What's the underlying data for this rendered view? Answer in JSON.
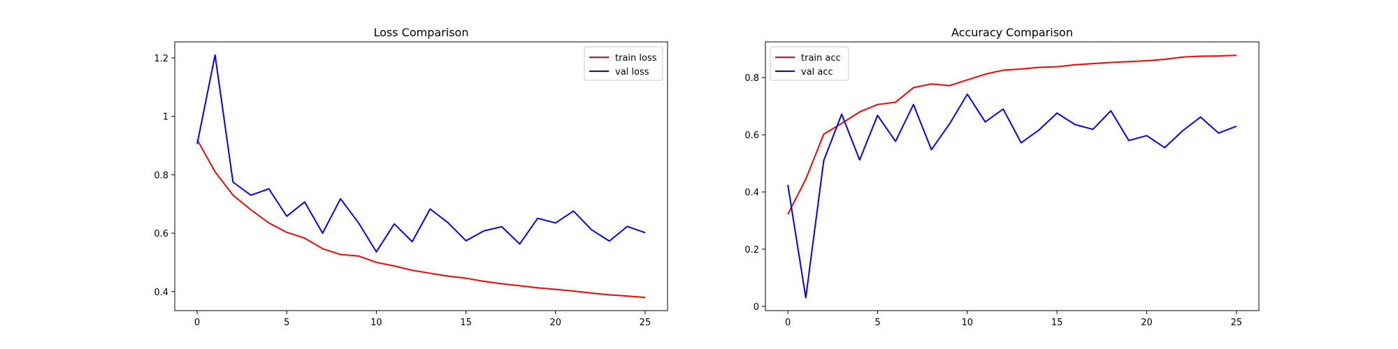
{
  "chart_data": [
    {
      "type": "line",
      "title": "Loss Comparison",
      "xlabel": "",
      "ylabel": "",
      "xlim": [
        -1.25,
        26.25
      ],
      "ylim": [
        0.335,
        1.255
      ],
      "xticks": [
        0,
        5,
        10,
        15,
        20,
        25
      ],
      "yticks": [
        0.4,
        0.6,
        0.8,
        1.0,
        1.2
      ],
      "grid": false,
      "legend_position": "top-right",
      "x": [
        0,
        1,
        2,
        3,
        4,
        5,
        6,
        7,
        8,
        9,
        10,
        11,
        12,
        13,
        14,
        15,
        16,
        17,
        18,
        19,
        20,
        21,
        22,
        23,
        24,
        25
      ],
      "series": [
        {
          "name": "train loss",
          "color": "#ff0000",
          "values": [
            0.92,
            0.81,
            0.73,
            0.68,
            0.635,
            0.603,
            0.583,
            0.547,
            0.527,
            0.522,
            0.5,
            0.488,
            0.473,
            0.463,
            0.453,
            0.446,
            0.435,
            0.427,
            0.42,
            0.413,
            0.408,
            0.402,
            0.395,
            0.389,
            0.385,
            0.38
          ]
        },
        {
          "name": "val loss",
          "color": "#0000ff",
          "values": [
            0.905,
            1.21,
            0.775,
            0.73,
            0.752,
            0.658,
            0.707,
            0.6,
            0.718,
            0.636,
            0.536,
            0.632,
            0.571,
            0.683,
            0.636,
            0.574,
            0.608,
            0.622,
            0.563,
            0.651,
            0.635,
            0.676,
            0.612,
            0.573,
            0.623,
            0.602
          ]
        }
      ]
    },
    {
      "type": "line",
      "title": "Accuracy Comparison",
      "xlabel": "",
      "ylabel": "",
      "xlim": [
        -1.25,
        26.25
      ],
      "ylim": [
        -0.015,
        0.925
      ],
      "xticks": [
        0,
        5,
        10,
        15,
        20,
        25
      ],
      "yticks": [
        0.0,
        0.2,
        0.4,
        0.6,
        0.8
      ],
      "grid": false,
      "legend_position": "top-left",
      "x": [
        0,
        1,
        2,
        3,
        4,
        5,
        6,
        7,
        8,
        9,
        10,
        11,
        12,
        13,
        14,
        15,
        16,
        17,
        18,
        19,
        20,
        21,
        22,
        23,
        24,
        25
      ],
      "series": [
        {
          "name": "train acc",
          "color": "#ff0000",
          "values": [
            0.322,
            0.445,
            0.602,
            0.64,
            0.68,
            0.706,
            0.714,
            0.765,
            0.778,
            0.772,
            0.792,
            0.812,
            0.826,
            0.83,
            0.836,
            0.838,
            0.845,
            0.849,
            0.853,
            0.856,
            0.859,
            0.864,
            0.872,
            0.875,
            0.876,
            0.878
          ]
        },
        {
          "name": "val acc",
          "color": "#0000ff",
          "values": [
            0.425,
            0.03,
            0.51,
            0.672,
            0.512,
            0.668,
            0.577,
            0.706,
            0.548,
            0.637,
            0.742,
            0.645,
            0.69,
            0.572,
            0.617,
            0.676,
            0.636,
            0.619,
            0.684,
            0.58,
            0.597,
            0.555,
            0.614,
            0.662,
            0.606,
            0.63
          ]
        }
      ]
    }
  ]
}
